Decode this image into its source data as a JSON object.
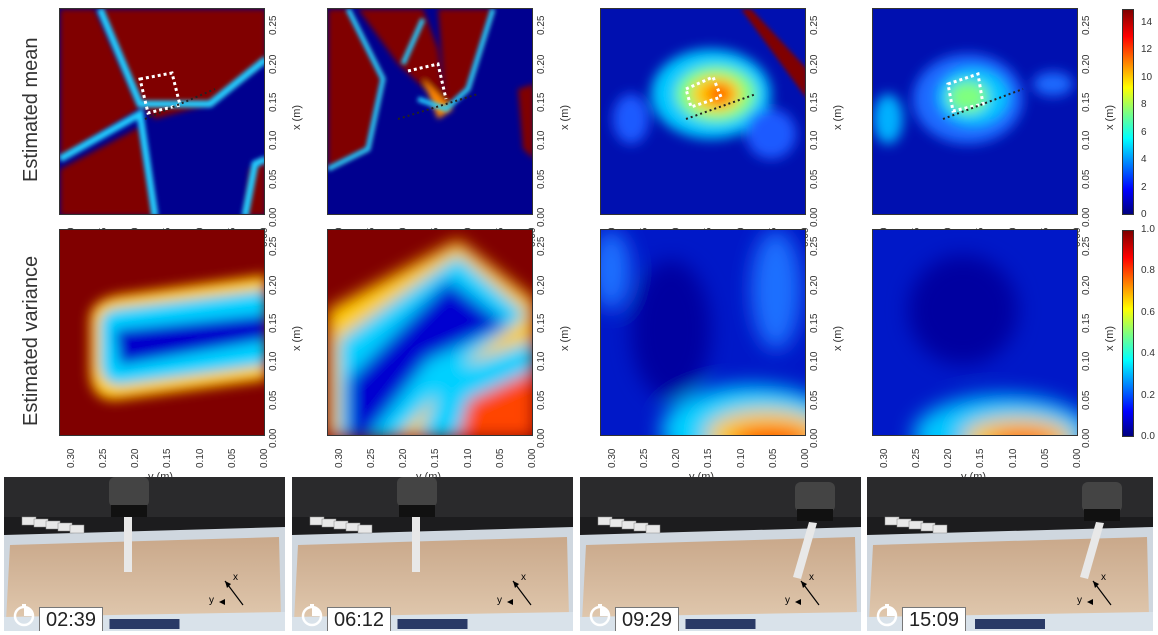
{
  "row_labels": {
    "mean": "Estimated mean",
    "variance": "Estimated variance"
  },
  "axis_labels": {
    "x": "x (m)",
    "y": "y (m)"
  },
  "chart_data": [
    {
      "type": "heatmap",
      "row": "Estimated mean",
      "column": 1,
      "xlabel": "y (m)",
      "ylabel": "x (m)",
      "xlim": [
        0.32,
        0.0
      ],
      "ylim": [
        0.0,
        0.27
      ],
      "clim": [
        0,
        15
      ]
    },
    {
      "type": "heatmap",
      "row": "Estimated mean",
      "column": 2,
      "xlabel": "",
      "ylabel": "x (m)",
      "xlim": [
        0.32,
        0.0
      ],
      "ylim": [
        0.0,
        0.27
      ],
      "clim": [
        0,
        15
      ]
    },
    {
      "type": "heatmap",
      "row": "Estimated mean",
      "column": 3,
      "xlabel": "",
      "ylabel": "x (m)",
      "xlim": [
        0.32,
        0.0
      ],
      "ylim": [
        0.0,
        0.27
      ],
      "clim": [
        0,
        15
      ]
    },
    {
      "type": "heatmap",
      "row": "Estimated mean",
      "column": 4,
      "xlabel": "",
      "ylabel": "x (m)",
      "xlim": [
        0.32,
        0.0
      ],
      "ylim": [
        0.0,
        0.27
      ],
      "clim": [
        0,
        15
      ]
    },
    {
      "type": "heatmap",
      "row": "Estimated variance",
      "column": 1,
      "xlabel": "y (m)",
      "ylabel": "x (m)",
      "xlim": [
        0.32,
        0.0
      ],
      "ylim": [
        0.0,
        0.27
      ],
      "clim": [
        0,
        1
      ]
    },
    {
      "type": "heatmap",
      "row": "Estimated variance",
      "column": 2,
      "xlabel": "y (m)",
      "ylabel": "x (m)",
      "xlim": [
        0.32,
        0.0
      ],
      "ylim": [
        0.0,
        0.27
      ],
      "clim": [
        0,
        1
      ]
    },
    {
      "type": "heatmap",
      "row": "Estimated variance",
      "column": 3,
      "xlabel": "y (m)",
      "ylabel": "x (m)",
      "xlim": [
        0.32,
        0.0
      ],
      "ylim": [
        0.0,
        0.27
      ],
      "clim": [
        0,
        1
      ]
    },
    {
      "type": "heatmap",
      "row": "Estimated variance",
      "column": 4,
      "xlabel": "y (m)",
      "ylabel": "x (m)",
      "xlim": [
        0.32,
        0.0
      ],
      "ylim": [
        0.0,
        0.27
      ],
      "clim": [
        0,
        1
      ]
    }
  ],
  "x_ticks": [
    "0.30",
    "0.25",
    "0.20",
    "0.15",
    "0.10",
    "0.05",
    "0.00"
  ],
  "y_ticks": [
    "0.00",
    "0.05",
    "0.10",
    "0.15",
    "0.20",
    "0.25"
  ],
  "colorbars": {
    "mean": {
      "ticks": [
        "0",
        "2",
        "4",
        "6",
        "8",
        "10",
        "12",
        "14"
      ],
      "min": 0,
      "max": 15
    },
    "variance": {
      "ticks": [
        "0.0",
        "0.2",
        "0.4",
        "0.6",
        "0.8",
        "1.0"
      ],
      "min": 0,
      "max": 1
    }
  },
  "colormap": "jet",
  "photos": [
    {
      "time": "02:39"
    },
    {
      "time": "06:12"
    },
    {
      "time": "09:29"
    },
    {
      "time": "15:09"
    }
  ],
  "photo_axis_labels": {
    "x": "x",
    "y": "y"
  }
}
